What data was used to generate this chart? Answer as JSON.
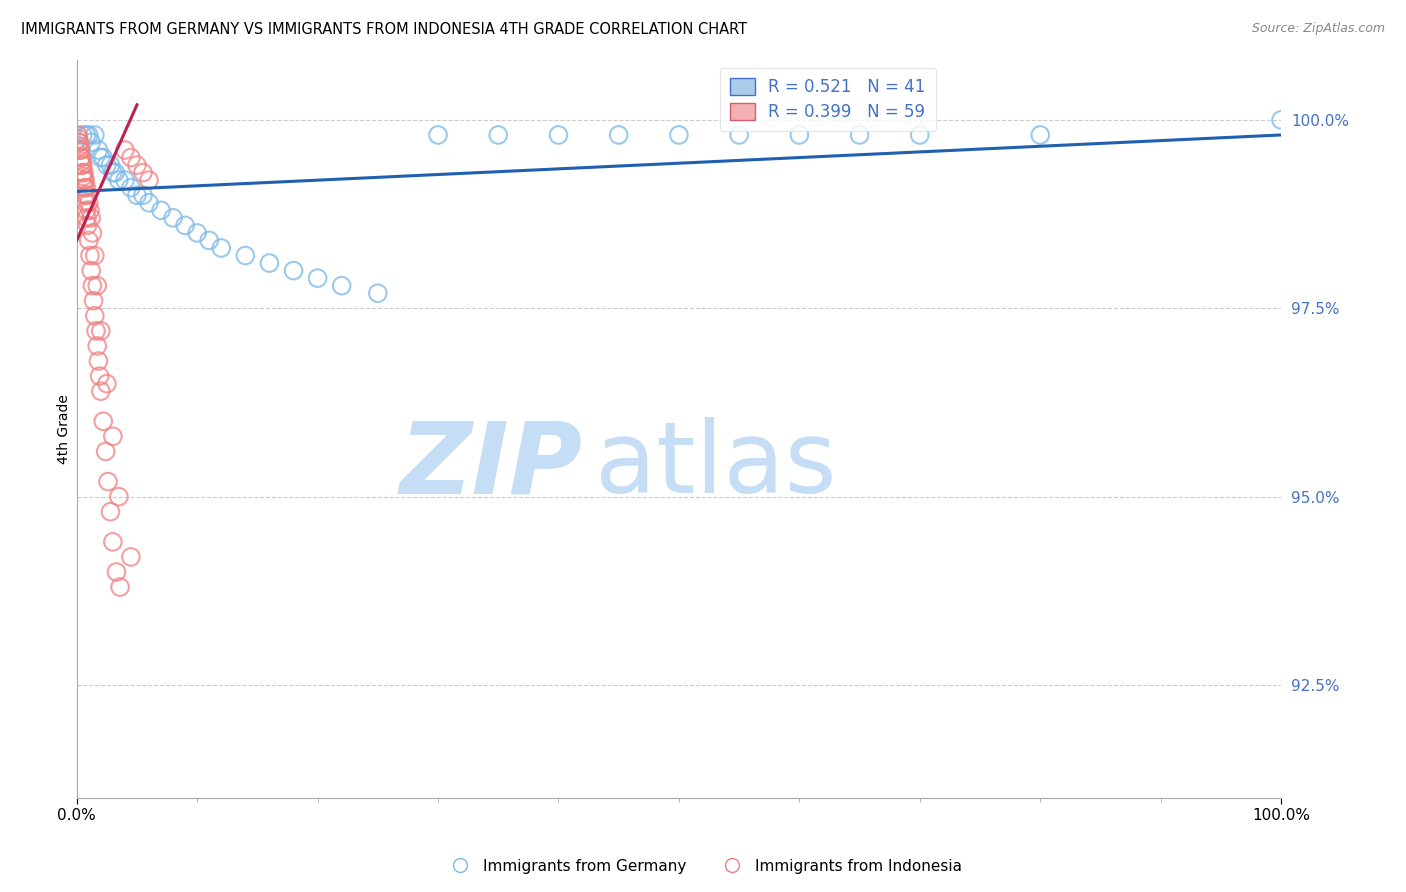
{
  "title": "IMMIGRANTS FROM GERMANY VS IMMIGRANTS FROM INDONESIA 4TH GRADE CORRELATION CHART",
  "source": "Source: ZipAtlas.com",
  "ylabel": "4th Grade",
  "ylabel_tick_values": [
    92.5,
    95.0,
    97.5,
    100.0
  ],
  "xmin": 0.0,
  "xmax": 100.0,
  "ymin": 91.0,
  "ymax": 100.8,
  "legend_germany": "Immigrants from Germany",
  "legend_indonesia": "Immigrants from Indonesia",
  "R_germany": 0.521,
  "N_germany": 41,
  "R_indonesia": 0.399,
  "N_indonesia": 59,
  "color_germany": "#7ab8e8",
  "color_indonesia": "#f08080",
  "color_line_germany": "#2060b0",
  "color_line_indonesia": "#c02050",
  "watermark_zip": "ZIP",
  "watermark_atlas": "atlas",
  "watermark_color_zip": "#b8d4ee",
  "watermark_color_atlas": "#c8dff0",
  "germany_x": [
    0.5,
    0.8,
    1.0,
    1.2,
    1.5,
    1.8,
    2.0,
    2.2,
    2.5,
    2.8,
    3.0,
    3.2,
    3.5,
    4.0,
    4.5,
    5.0,
    5.5,
    6.0,
    7.0,
    8.0,
    9.0,
    10.0,
    11.0,
    12.0,
    14.0,
    16.0,
    18.0,
    20.0,
    22.0,
    25.0,
    30.0,
    35.0,
    40.0,
    45.0,
    50.0,
    55.0,
    60.0,
    65.0,
    70.0,
    80.0,
    100.0
  ],
  "germany_y": [
    99.8,
    99.8,
    99.8,
    99.7,
    99.8,
    99.6,
    99.5,
    99.5,
    99.4,
    99.4,
    99.3,
    99.3,
    99.2,
    99.2,
    99.1,
    99.0,
    99.0,
    98.9,
    98.8,
    98.7,
    98.6,
    98.5,
    98.4,
    98.3,
    98.2,
    98.1,
    98.0,
    97.9,
    97.8,
    97.7,
    99.8,
    99.8,
    99.8,
    99.8,
    99.8,
    99.8,
    99.8,
    99.8,
    99.8,
    99.8,
    100.0
  ],
  "indonesia_x": [
    0.1,
    0.15,
    0.2,
    0.25,
    0.3,
    0.35,
    0.4,
    0.45,
    0.5,
    0.55,
    0.6,
    0.65,
    0.7,
    0.75,
    0.8,
    0.85,
    0.9,
    1.0,
    1.1,
    1.2,
    1.3,
    1.4,
    1.5,
    1.6,
    1.7,
    1.8,
    1.9,
    2.0,
    2.2,
    2.4,
    2.6,
    2.8,
    3.0,
    3.3,
    3.6,
    4.0,
    4.5,
    5.0,
    5.5,
    6.0,
    0.2,
    0.3,
    0.4,
    0.5,
    0.6,
    0.7,
    0.8,
    0.9,
    1.0,
    1.1,
    1.2,
    1.3,
    1.5,
    1.7,
    2.0,
    2.5,
    3.0,
    3.5,
    4.5
  ],
  "indonesia_y": [
    99.8,
    99.75,
    99.7,
    99.65,
    99.6,
    99.5,
    99.45,
    99.4,
    99.3,
    99.25,
    99.2,
    99.1,
    99.0,
    98.9,
    98.8,
    98.7,
    98.6,
    98.4,
    98.2,
    98.0,
    97.8,
    97.6,
    97.4,
    97.2,
    97.0,
    96.8,
    96.6,
    96.4,
    96.0,
    95.6,
    95.2,
    94.8,
    94.4,
    94.0,
    93.8,
    99.6,
    99.5,
    99.4,
    99.3,
    99.2,
    99.7,
    99.6,
    99.5,
    99.4,
    99.3,
    99.2,
    99.1,
    99.0,
    98.9,
    98.8,
    98.7,
    98.5,
    98.2,
    97.8,
    97.2,
    96.5,
    95.8,
    95.0,
    94.2
  ]
}
